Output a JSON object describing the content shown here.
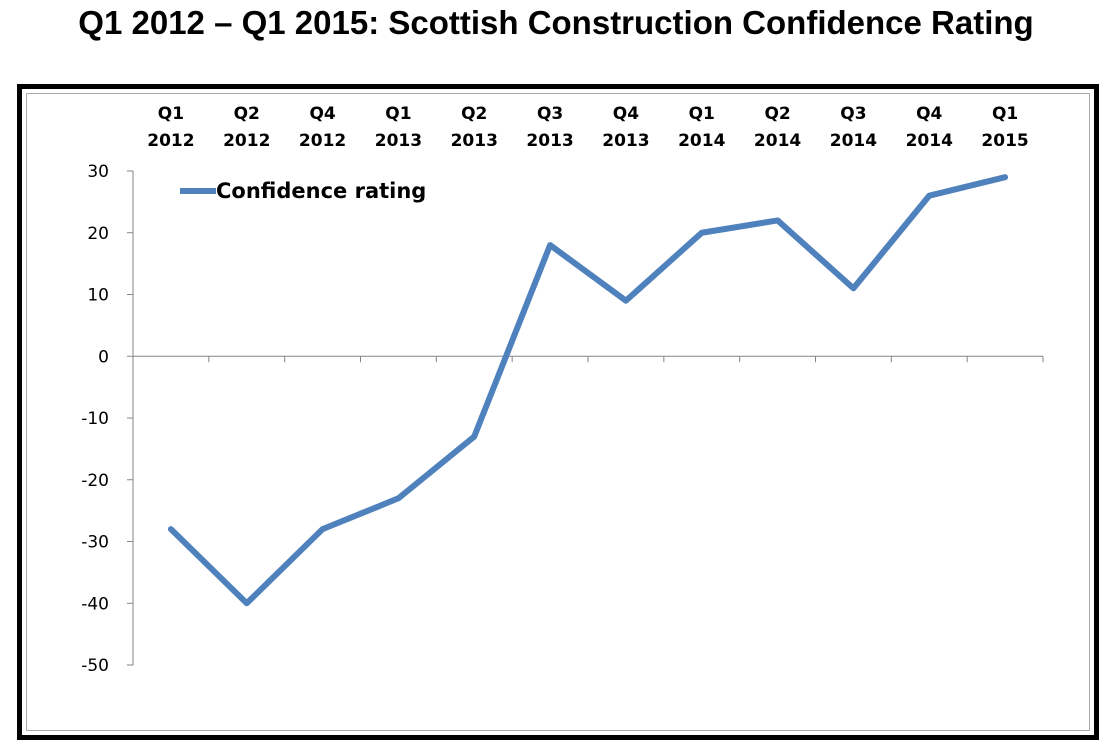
{
  "chart_data": {
    "type": "line",
    "title": "Q1 2012 – Q1 2015: Scottish Construction Confidence Rating",
    "categories": [
      [
        "Q1",
        "2012"
      ],
      [
        "Q2",
        "2012"
      ],
      [
        "Q4",
        "2012"
      ],
      [
        "Q1",
        "2013"
      ],
      [
        "Q2",
        "2013"
      ],
      [
        "Q3",
        "2013"
      ],
      [
        "Q4",
        "2013"
      ],
      [
        "Q1",
        "2014"
      ],
      [
        "Q2",
        "2014"
      ],
      [
        "Q3",
        "2014"
      ],
      [
        "Q4",
        "2014"
      ],
      [
        "Q1",
        "2015"
      ]
    ],
    "series": [
      {
        "name": "Confidence rating",
        "color": "#4f81bd",
        "values": [
          -28,
          -40,
          -28,
          -23,
          -13,
          18,
          9,
          20,
          22,
          11,
          26,
          29
        ]
      }
    ],
    "ylim": [
      -50,
      30
    ],
    "yticks": [
      "30",
      "20",
      "10",
      "0",
      "-10",
      "-20",
      "-30",
      "-40",
      "-50"
    ],
    "ytick_values": [
      30,
      20,
      10,
      0,
      -10,
      -20,
      -30,
      -40,
      -50
    ],
    "xlabel": "",
    "ylabel": "",
    "grid": false,
    "legend_position": "top-left",
    "category_axis_position": "top"
  }
}
